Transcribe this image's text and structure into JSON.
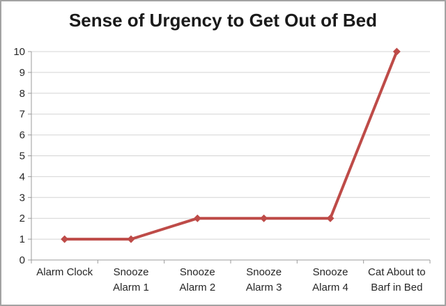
{
  "window": {
    "background": "#FFFFFF",
    "border_color": "#A3A3A3"
  },
  "chart_data": {
    "type": "line",
    "title": "Sense of Urgency to Get Out of Bed",
    "categories": [
      "Alarm Clock",
      "Snooze Alarm 1",
      "Snooze Alarm 2",
      "Snooze Alarm 3",
      "Snooze Alarm 4",
      "Cat About to Barf in Bed"
    ],
    "category_lines": [
      [
        "Alarm Clock"
      ],
      [
        "Snooze",
        "Alarm 1"
      ],
      [
        "Snooze",
        "Alarm 2"
      ],
      [
        "Snooze",
        "Alarm 3"
      ],
      [
        "Snooze",
        "Alarm 4"
      ],
      [
        "Cat About to",
        "Barf in Bed"
      ]
    ],
    "values": [
      1,
      1,
      2,
      2,
      2,
      10
    ],
    "xlabel": "",
    "ylabel": "",
    "ylim": [
      0,
      10
    ],
    "yticks": [
      0,
      1,
      2,
      3,
      4,
      5,
      6,
      7,
      8,
      9,
      10
    ],
    "grid": true,
    "legend": "none",
    "marker": "diamond",
    "line_width": 4,
    "colors": {
      "series": "#BE4B48",
      "grid": "#D4D4D4",
      "axis": "#9B9B9B",
      "tick_text": "#262626",
      "title_text": "#1A1A1A"
    }
  }
}
